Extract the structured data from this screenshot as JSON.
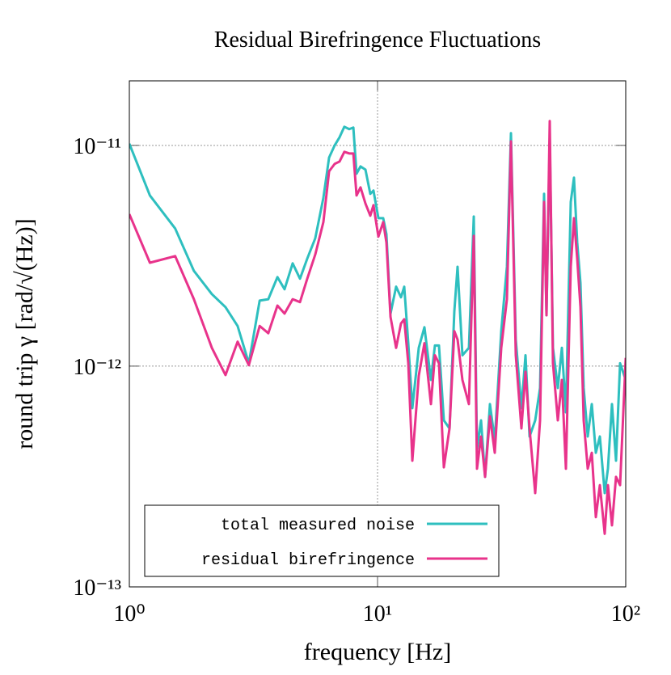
{
  "chart_data": {
    "type": "line",
    "title": "Residual Birefringence Fluctuations",
    "x_label": "frequency [Hz]",
    "y_label": "round trip γ [rad/√(Hz)]",
    "log_x": true,
    "log_y": true,
    "grid": true,
    "legend": "lower left",
    "xlim": [
      1,
      100
    ],
    "ylim": [
      1e-13,
      1.96e-11
    ],
    "xticks": [
      {
        "value": 1,
        "label": "10⁰"
      },
      {
        "value": 10,
        "label": "10¹"
      },
      {
        "value": 100,
        "label": "10²"
      }
    ],
    "yticks": [
      {
        "value": 1e-13,
        "label": "10⁻¹³"
      },
      {
        "value": 1e-12,
        "label": "10⁻¹²"
      },
      {
        "value": 1e-11,
        "label": "10⁻¹¹"
      }
    ],
    "x": [
      1,
      1.21,
      1.53,
      1.82,
      2.15,
      2.44,
      2.73,
      3.03,
      3.35,
      3.63,
      3.95,
      4.22,
      4.55,
      4.87,
      5.21,
      5.61,
      6.05,
      6.38,
      6.72,
      7.03,
      7.35,
      7.69,
      7.99,
      8.23,
      8.54,
      8.94,
      9.35,
      9.63,
      10.08,
      10.54,
      10.86,
      11.28,
      11.88,
      12.43,
      12.81,
      13.3,
      13.81,
      14.66,
      15.45,
      16.41,
      17.03,
      17.68,
      18.5,
      19.5,
      20.39,
      21.01,
      21.98,
      23.34,
      24.42,
      25.16,
      26.12,
      27.12,
      28.37,
      29.67,
      31.51,
      33.21,
      34.48,
      36.06,
      38.0,
      39.46,
      40.97,
      43.18,
      45.16,
      46.88,
      47.95,
      49.41,
      50.91,
      53.26,
      55.3,
      57.41,
      60.05,
      61.87,
      63.76,
      65.71,
      67.7,
      70.3,
      72.99,
      75.78,
      78.66,
      82.29,
      84.78,
      88.02,
      91.39,
      94.89,
      100
    ],
    "series": [
      {
        "name": "total measured noise",
        "color": "#2ebfbf",
        "values": [
          1.017e-11,
          5.93e-12,
          4.2e-12,
          2.7e-12,
          2.12e-12,
          1.85e-12,
          1.52e-12,
          1.03e-12,
          1.98e-12,
          2.01e-12,
          2.53e-12,
          2.23e-12,
          2.92e-12,
          2.49e-12,
          3.07e-12,
          3.79e-12,
          5.78e-12,
          8.81e-12,
          1e-11,
          1.088e-11,
          1.214e-11,
          1.184e-11,
          1.204e-11,
          7.44e-12,
          8.03e-12,
          7.76e-12,
          6.03e-12,
          6.24e-12,
          4.68e-12,
          4.68e-12,
          3.96e-12,
          1.73e-12,
          2.29e-12,
          2.05e-12,
          2.29e-12,
          1.27e-12,
          6.45e-13,
          1.21e-12,
          1.5e-12,
          8.66e-13,
          1.24e-12,
          1.24e-12,
          5.68e-13,
          5.22e-13,
          1.77e-12,
          2.82e-12,
          1.12e-12,
          1.21e-12,
          4.76e-12,
          4.23e-13,
          5.68e-13,
          3.15e-13,
          6.73e-13,
          4.6e-13,
          1.44e-12,
          2.82e-12,
          1.135e-11,
          1.32e-12,
          6.45e-13,
          1.12e-12,
          4.8e-13,
          5.68e-13,
          7.96e-13,
          6.03e-12,
          1.7e-12,
          1.088e-11,
          1.21e-12,
          7.96e-13,
          1.21e-12,
          6.18e-13,
          5.54e-12,
          7.14e-12,
          3.63e-12,
          2.38e-12,
          7.96e-13,
          4.8e-13,
          6.73e-13,
          4.05e-13,
          4.8e-13,
          2.66e-13,
          3.43e-13,
          6.73e-13,
          3.73e-13,
          1.03e-12,
          8.66e-13
        ]
      },
      {
        "name": "residual birefringence",
        "color": "#e8338b",
        "values": [
          4.88e-12,
          2.94e-12,
          3.15e-12,
          2.01e-12,
          1.21e-12,
          9.11e-13,
          1.29e-12,
          1.01e-12,
          1.52e-12,
          1.41e-12,
          1.88e-12,
          1.73e-12,
          2.01e-12,
          1.95e-12,
          2.49e-12,
          3.2e-12,
          4.49e-12,
          7.63e-12,
          8.24e-12,
          8.45e-12,
          9.35e-12,
          9.19e-12,
          9.19e-12,
          5.93e-12,
          6.45e-12,
          5.45e-12,
          4.8e-12,
          5.36e-12,
          3.86e-12,
          4.49e-12,
          3.63e-12,
          1.67e-12,
          1.21e-12,
          1.56e-12,
          1.63e-12,
          1.03e-12,
          3.73e-13,
          9.04e-13,
          1.27e-12,
          6.73e-13,
          1.12e-12,
          1.03e-12,
          3.48e-13,
          5.22e-13,
          1.44e-12,
          1.32e-12,
          8.66e-13,
          6.73e-13,
          3.89e-12,
          3.43e-13,
          4.8e-13,
          3.15e-13,
          5.93e-13,
          4.05e-13,
          1.21e-12,
          2.01e-12,
          1.043e-11,
          1.12e-12,
          5.22e-13,
          9.43e-13,
          5.22e-13,
          2.66e-13,
          5.68e-13,
          5.54e-12,
          1.7e-12,
          1.288e-11,
          1.03e-12,
          5.68e-13,
          8.66e-13,
          3.43e-13,
          2.82e-12,
          4.68e-12,
          3.07e-12,
          1.85e-12,
          5.68e-13,
          3.43e-13,
          4.05e-13,
          2.07e-13,
          2.89e-13,
          1.74e-13,
          2.89e-13,
          1.9e-13,
          3.15e-13,
          2.89e-13,
          1.09e-12
        ]
      }
    ]
  }
}
